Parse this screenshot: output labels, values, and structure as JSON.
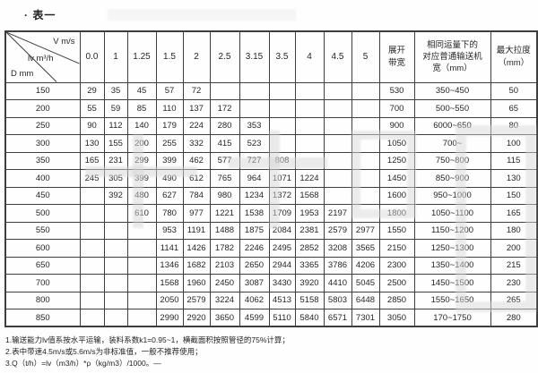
{
  "title": "· 表一",
  "table": {
    "corner": {
      "top": "V  m/s",
      "mid": "lv  m³/h",
      "bottom": "D  mm"
    },
    "speed_columns": [
      "0.0",
      "1",
      "1.25",
      "1.5",
      "2",
      "2.5",
      "3.15",
      "3.5",
      "4",
      "4.5",
      "5"
    ],
    "tail_headers": {
      "belt_width": "展开\n带宽",
      "equivalent_width": "相同运量下的\n对应普通输送机\n宽（mm）",
      "max_tension": "最大拉度\n（mm）"
    },
    "rows": [
      {
        "d": "150",
        "values": [
          "29",
          "35",
          "45",
          "57",
          "72",
          "",
          "",
          "",
          "",
          "",
          ""
        ],
        "belt_width": "530",
        "equivalent": "350~450",
        "max": "50"
      },
      {
        "d": "200",
        "values": [
          "55",
          "59",
          "85",
          "110",
          "137",
          "172",
          "",
          "",
          "",
          "",
          ""
        ],
        "belt_width": "700",
        "equivalent": "500~550",
        "max": "65"
      },
      {
        "d": "250",
        "values": [
          "90",
          "112",
          "140",
          "179",
          "224",
          "280",
          "353",
          "",
          "",
          "",
          ""
        ],
        "belt_width": "900",
        "equivalent": "6000~650",
        "max": "80"
      },
      {
        "d": "300",
        "values": [
          "130",
          "155",
          "200",
          "255",
          "332",
          "415",
          "523",
          "",
          "",
          "",
          ""
        ],
        "belt_width": "1050",
        "equivalent": "700~",
        "max": "100"
      },
      {
        "d": "350",
        "values": [
          "165",
          "231",
          "299",
          "399",
          "462",
          "577",
          "727",
          "808",
          "",
          "",
          ""
        ],
        "belt_width": "1250",
        "equivalent": "750~800",
        "max": "115"
      },
      {
        "d": "400",
        "values": [
          "245",
          "305",
          "399",
          "490",
          "612",
          "765",
          "964",
          "1071",
          "1224",
          "",
          ""
        ],
        "belt_width": "1450",
        "equivalent": "850~900",
        "max": "130"
      },
      {
        "d": "450",
        "values": [
          "",
          "392",
          "480",
          "627",
          "784",
          "980",
          "1234",
          "1372",
          "1568",
          "",
          ""
        ],
        "belt_width": "1600",
        "equivalent": "950~1000",
        "max": "150"
      },
      {
        "d": "500",
        "values": [
          "",
          "",
          "610",
          "780",
          "977",
          "1221",
          "1538",
          "1709",
          "1953",
          "2197",
          ""
        ],
        "belt_width": "1800",
        "equivalent": "1050~1100",
        "max": "165"
      },
      {
        "d": "550",
        "values": [
          "",
          "",
          "",
          "953",
          "1191",
          "1488",
          "1875",
          "2084",
          "2381",
          "2579",
          "2977"
        ],
        "belt_width": "1550",
        "equivalent": "1150~1200",
        "max": "180"
      },
      {
        "d": "600",
        "values": [
          "",
          "",
          "",
          "1141",
          "1426",
          "1782",
          "2246",
          "2495",
          "2852",
          "3208",
          "3565"
        ],
        "belt_width": "2150",
        "equivalent": "1250~1300",
        "max": "200"
      },
      {
        "d": "650",
        "values": [
          "",
          "",
          "",
          "1346",
          "1682",
          "2103",
          "2650",
          "2944",
          "3365",
          "3786",
          "4206"
        ],
        "belt_width": "2300",
        "equivalent": "1350~1400",
        "max": "215"
      },
      {
        "d": "700",
        "values": [
          "",
          "",
          "",
          "1568",
          "1960",
          "2450",
          "3087",
          "3430",
          "3920",
          "4410",
          "5045"
        ],
        "belt_width": "2500",
        "equivalent": "1450~1500",
        "max": "230"
      },
      {
        "d": "800",
        "values": [
          "",
          "",
          "",
          "2050",
          "2579",
          "3224",
          "4062",
          "4513",
          "5158",
          "5803",
          "6448"
        ],
        "belt_width": "2850",
        "equivalent": "1550~1650",
        "max": "265"
      },
      {
        "d": "850",
        "values": [
          "",
          "",
          "",
          "2990",
          "2920",
          "3650",
          "4599",
          "5110",
          "5840",
          "6571",
          "7301"
        ],
        "belt_width": "3050",
        "equivalent": "170~1750",
        "max": "280"
      }
    ]
  },
  "footnotes": [
    "1.输送能力lv值系按水平运输，装料系数k1=0.95~1，横截面积按照管径的75%计算；",
    "2.表中带速4.5m/s或5.6m/s为非标准值，一般不推荐使用；",
    "3.Q（t/h）=lv（m3/h）*ρ（kg/m3）/1000。—"
  ]
}
